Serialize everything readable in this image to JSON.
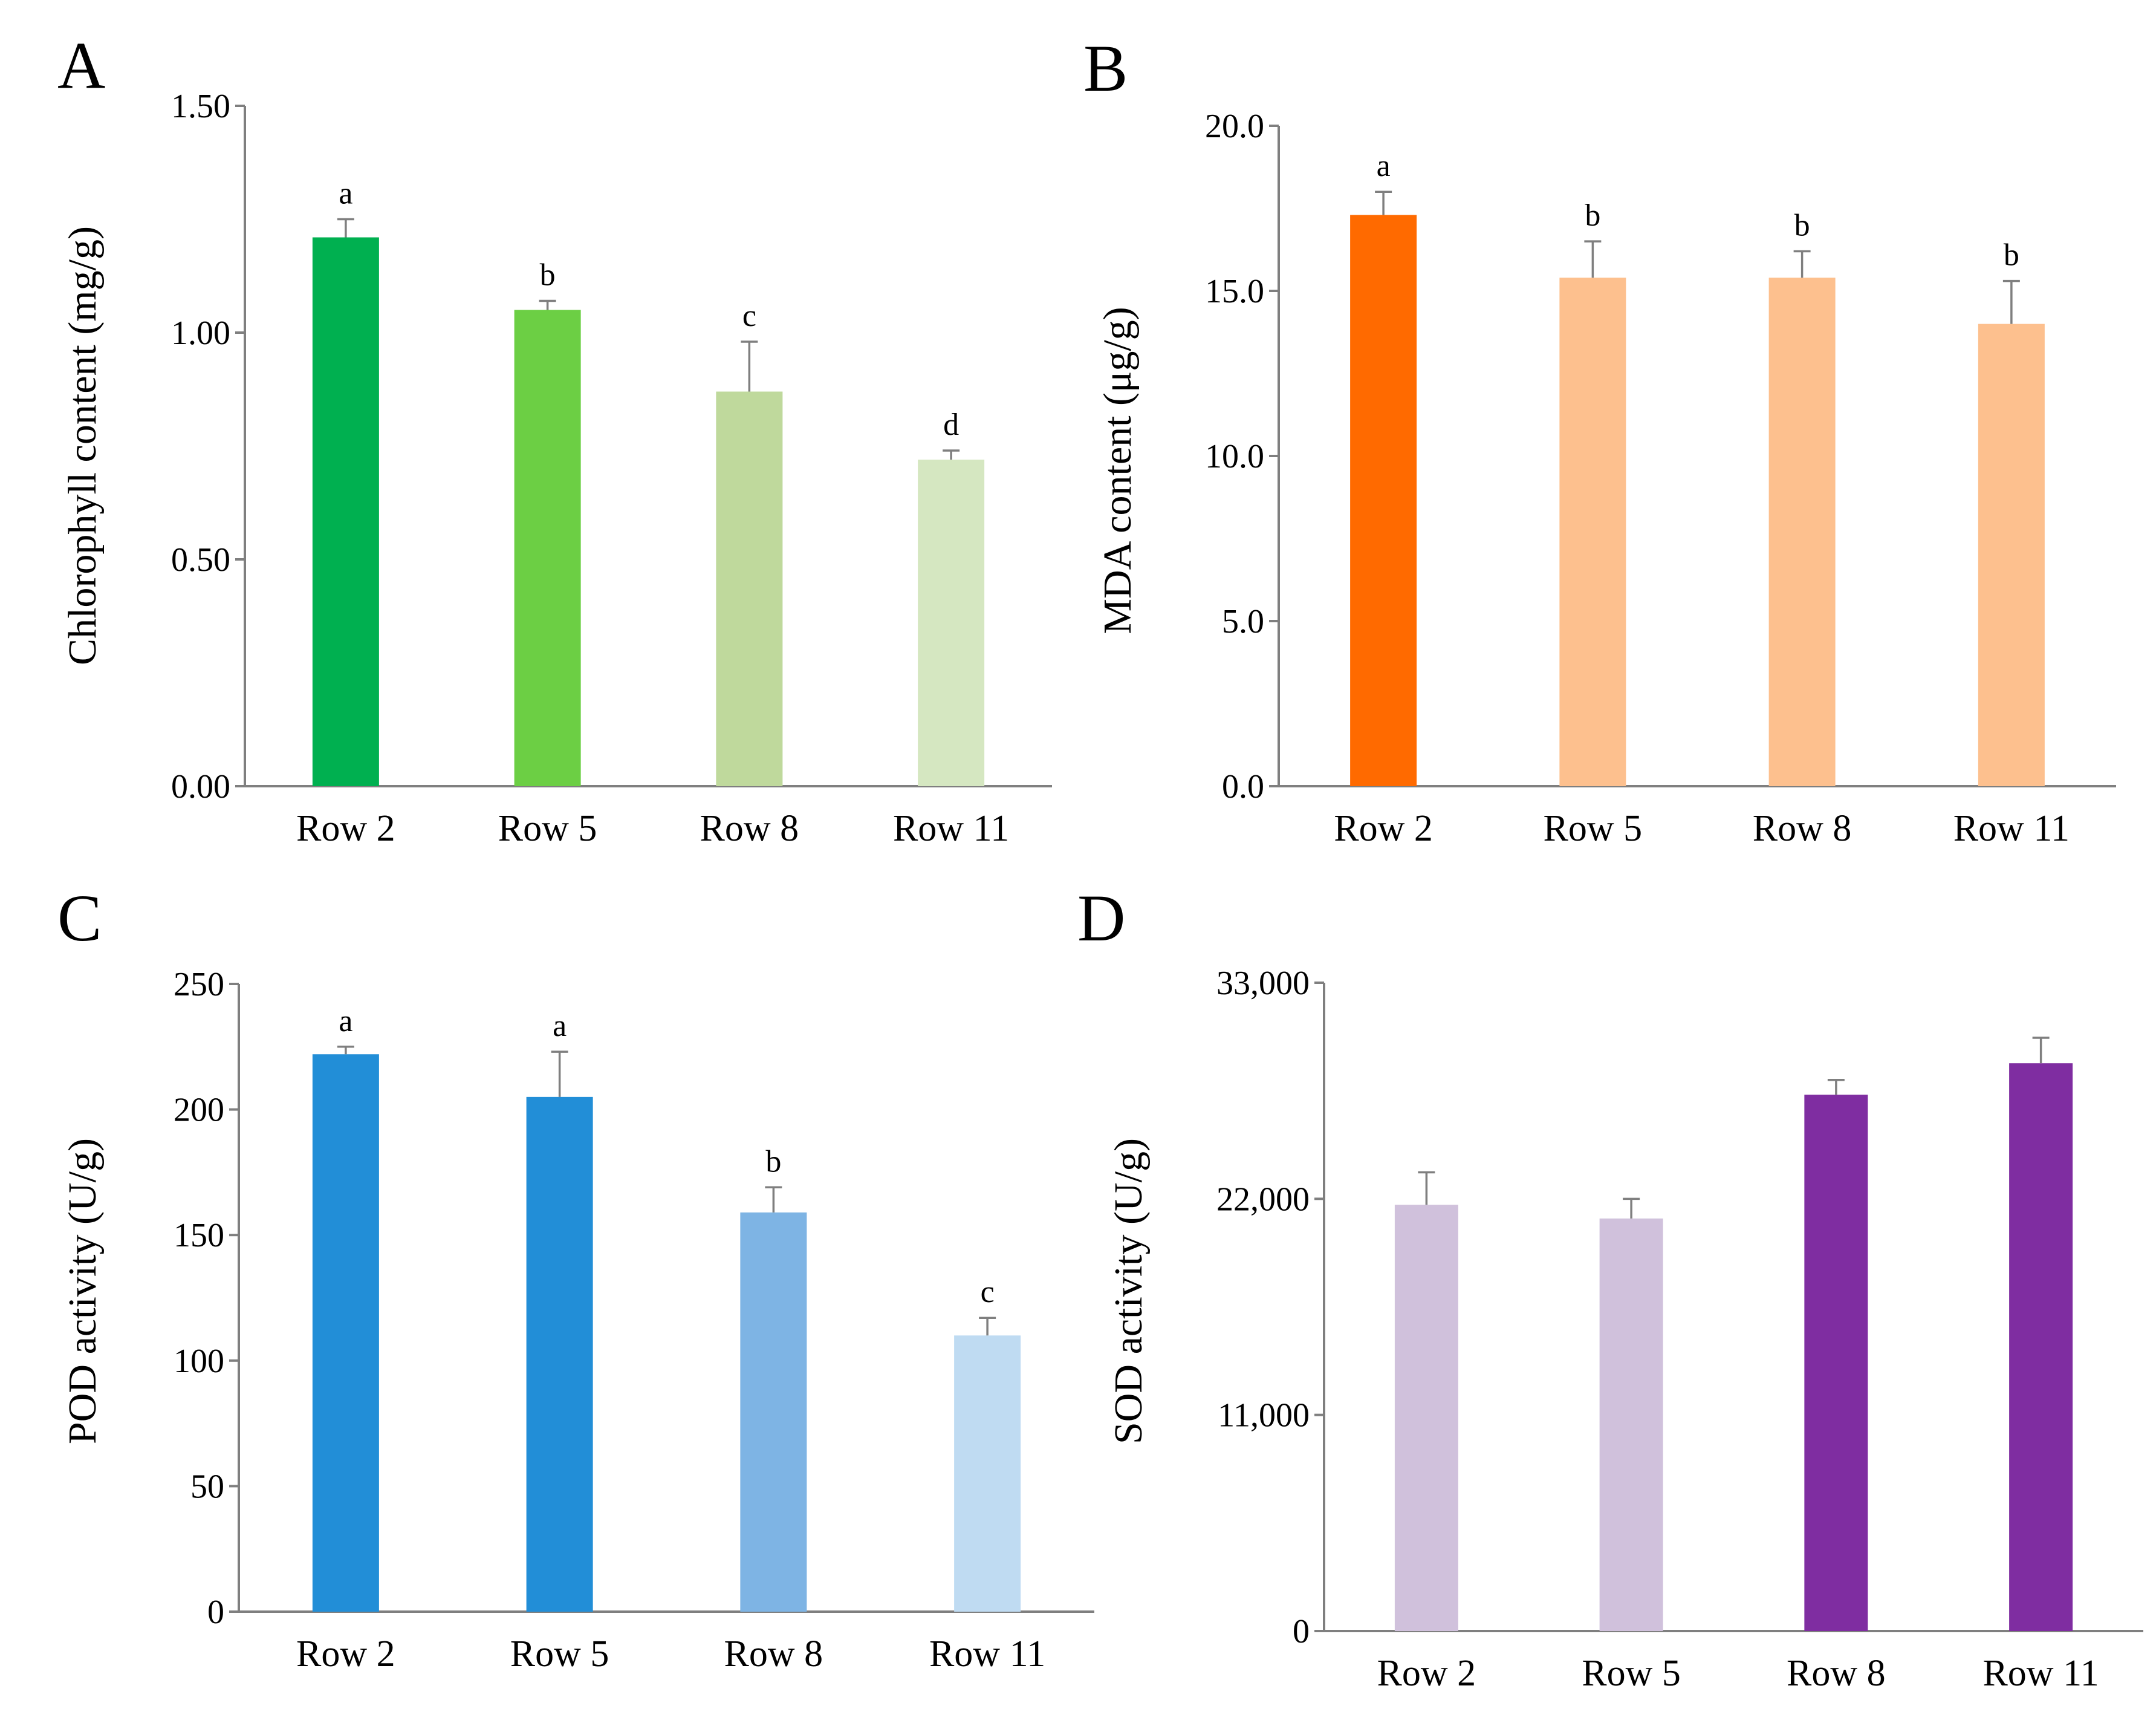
{
  "chart_data": [
    {
      "type": "bar",
      "panel": "A",
      "categories": [
        "Row 2",
        "Row 5",
        "Row 8",
        "Row 11"
      ],
      "values": [
        1.21,
        1.05,
        0.87,
        0.72
      ],
      "errors": [
        0.04,
        0.02,
        0.11,
        0.02
      ],
      "significance": [
        "a",
        "b",
        "c",
        "d"
      ],
      "colors": [
        "#00B050",
        "#6CCF44",
        "#BFD99C",
        "#D5E7C1"
      ],
      "ylabel": "Chlorophyll content  (mg/g)",
      "xlabel": "",
      "ylim": [
        0,
        1.5
      ],
      "yticks": [
        "0.00",
        "0.50",
        "1.00",
        "1.50"
      ],
      "ytick_values": [
        0,
        0.5,
        1.0,
        1.5
      ],
      "grid": false
    },
    {
      "type": "bar",
      "panel": "B",
      "categories": [
        "Row 2",
        "Row 5",
        "Row 8",
        "Row 11"
      ],
      "values": [
        17.3,
        15.4,
        15.4,
        14.0
      ],
      "errors": [
        0.7,
        1.1,
        0.8,
        1.3
      ],
      "significance": [
        "a",
        "b",
        "b",
        "b"
      ],
      "colors": [
        "#FF6A00",
        "#FDC08E",
        "#FDC08E",
        "#FDC08E"
      ],
      "ylabel": "MDA content (μg/g)",
      "xlabel": "",
      "ylim": [
        0,
        20
      ],
      "yticks": [
        "0.0",
        "5.0",
        "10.0",
        "15.0",
        "20.0"
      ],
      "ytick_values": [
        0,
        5,
        10,
        15,
        20
      ],
      "grid": false
    },
    {
      "type": "bar",
      "panel": "C",
      "categories": [
        "Row 2",
        "Row 5",
        "Row 8",
        "Row 11"
      ],
      "values": [
        222,
        205,
        159,
        110
      ],
      "errors": [
        3,
        18,
        10,
        7
      ],
      "significance": [
        "a",
        "a",
        "b",
        "c"
      ],
      "colors": [
        "#228ED7",
        "#228ED7",
        "#7EB4E4",
        "#BFDBF2"
      ],
      "ylabel": "POD activity (U/g)",
      "xlabel": "",
      "ylim": [
        0,
        250
      ],
      "yticks": [
        "0",
        "50",
        "100",
        "150",
        "200",
        "250"
      ],
      "ytick_values": [
        0,
        50,
        100,
        150,
        200,
        250
      ],
      "grid": false
    },
    {
      "type": "bar",
      "panel": "D",
      "categories": [
        "Row 2",
        "Row 5",
        "Row 8",
        "Row 11"
      ],
      "values": [
        21700,
        21000,
        27300,
        28900
      ],
      "errors": [
        1650,
        1000,
        750,
        1300
      ],
      "significance": [
        "",
        "",
        "",
        ""
      ],
      "colors": [
        "#D0C1DC",
        "#D0C1DC",
        "#7F2DA1",
        "#7F2DA1"
      ],
      "ylabel": "SOD activity (U/g)",
      "xlabel": "",
      "ylim": [
        0,
        33000
      ],
      "yticks": [
        "0",
        "11,000",
        "22,000",
        "33,000"
      ],
      "ytick_values": [
        0,
        11000,
        22000,
        33000
      ],
      "grid": false
    }
  ]
}
